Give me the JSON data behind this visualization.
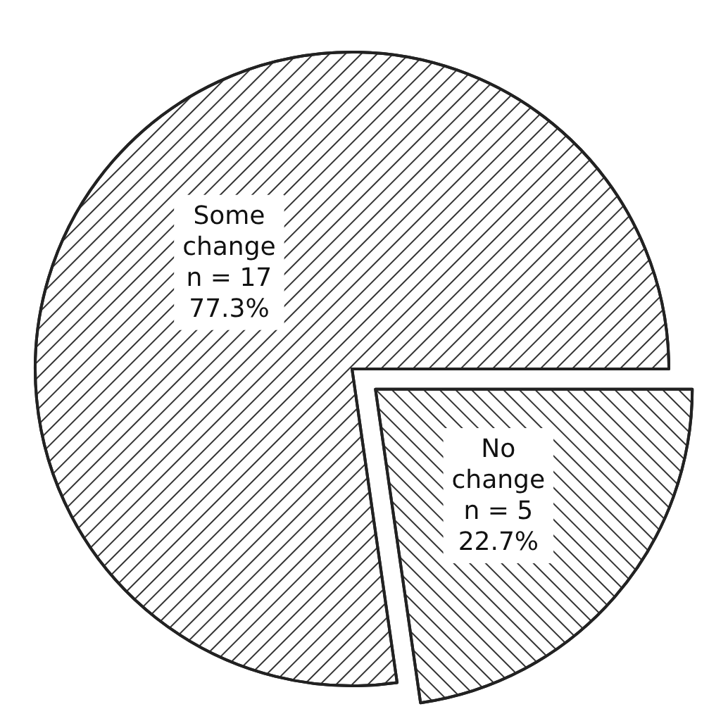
{
  "chart_data": {
    "type": "pie",
    "categories": [
      "Some change",
      "No change"
    ],
    "values": [
      17,
      5
    ],
    "value_labels": [
      "n = 17\n77.3%",
      "n = 5\n22.7%"
    ],
    "colors": [
      "#ffffff",
      "#ffffff"
    ],
    "legend": false
  }
}
